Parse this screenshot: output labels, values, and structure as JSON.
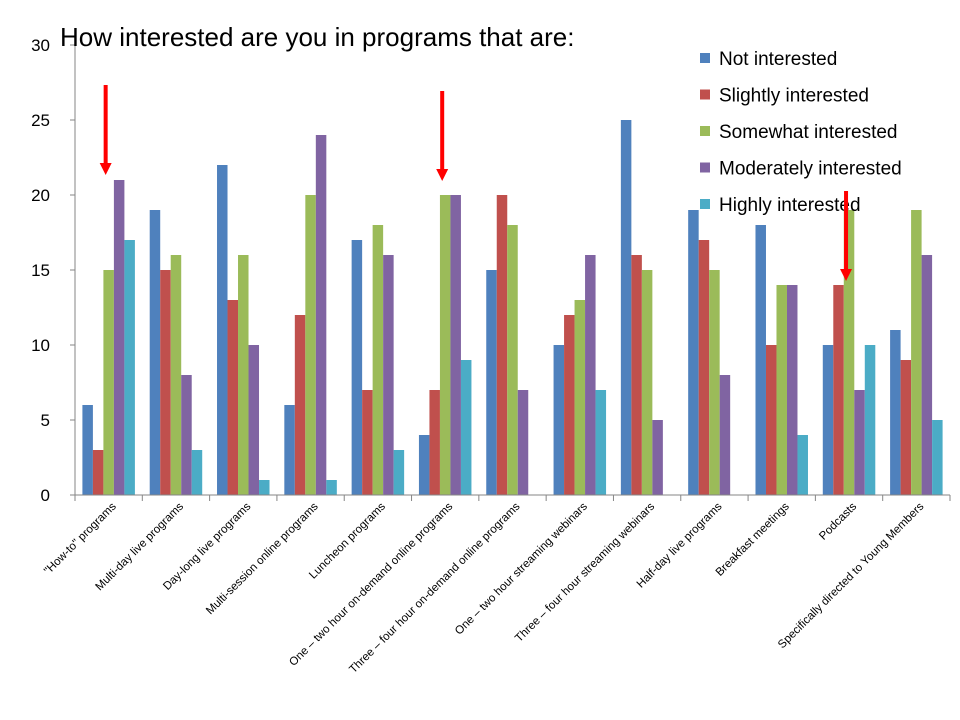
{
  "chart_data": {
    "type": "bar",
    "title": "How interested are you in programs that are:",
    "xlabel": "",
    "ylabel": "",
    "ylim": [
      0,
      30
    ],
    "yticks": [
      0,
      5,
      10,
      15,
      20,
      25,
      30
    ],
    "grid": false,
    "legend_position": "top-right",
    "categories": [
      "\"How-to\" programs",
      "Multi-day live programs",
      "Day-long live programs",
      "Multi-session online programs",
      "Luncheon programs",
      "One – two hour on-demand online programs",
      "Three – four hour on-demand online programs",
      "One – two hour streaming webinars",
      "Three – four hour streaming webinars",
      "Half-day live programs",
      "Breakfast meetings",
      "Podcasts",
      "Specifically directed to Young Members"
    ],
    "series": [
      {
        "name": "Not interested",
        "color": "#4F81BD",
        "values": [
          6,
          19,
          22,
          6,
          17,
          4,
          15,
          10,
          25,
          19,
          18,
          10,
          11
        ]
      },
      {
        "name": "Slightly interested",
        "color": "#C0504D",
        "values": [
          3,
          15,
          13,
          12,
          7,
          7,
          20,
          12,
          16,
          17,
          10,
          14,
          9
        ]
      },
      {
        "name": "Somewhat interested",
        "color": "#9BBB59",
        "values": [
          15,
          16,
          16,
          20,
          18,
          20,
          18,
          13,
          15,
          15,
          14,
          19,
          19
        ]
      },
      {
        "name": "Moderately interested",
        "color": "#8064A2",
        "values": [
          21,
          8,
          10,
          24,
          16,
          20,
          7,
          16,
          5,
          8,
          14,
          7,
          16
        ]
      },
      {
        "name": "Highly interested",
        "color": "#4BACC6",
        "values": [
          17,
          3,
          1,
          1,
          3,
          9,
          0,
          7,
          0,
          0,
          4,
          10,
          5
        ]
      }
    ],
    "annotations": [
      {
        "type": "arrow",
        "color": "#FF0000",
        "category_index": 0
      },
      {
        "type": "arrow",
        "color": "#FF0000",
        "category_index": 5
      },
      {
        "type": "arrow",
        "color": "#FF0000",
        "category_index": 11
      }
    ]
  }
}
